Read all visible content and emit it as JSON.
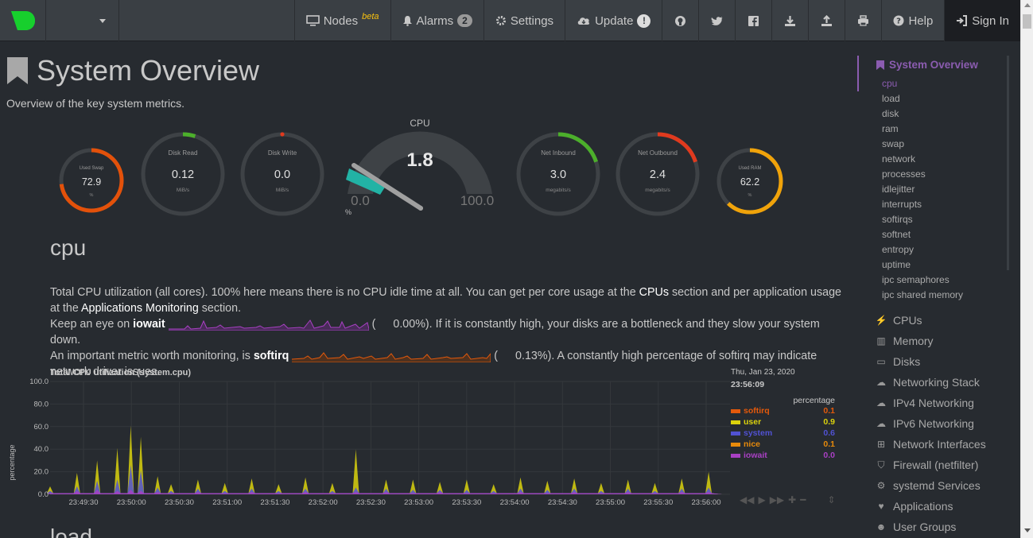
{
  "navbar": {
    "nodes_label": "Nodes",
    "nodes_beta": "beta",
    "alarms_label": "Alarms",
    "alarms_count": "2",
    "settings_label": "Settings",
    "update_label": "Update",
    "update_badge": "!",
    "help_label": "Help",
    "signin_label": "Sign In",
    "icons": [
      "github-icon",
      "twitter-icon",
      "facebook-icon",
      "download-icon",
      "upload-icon",
      "print-icon"
    ]
  },
  "page": {
    "title": "System Overview",
    "subtitle": "Overview of the key system metrics."
  },
  "gauges": {
    "used_swap": {
      "label": "Used Swap",
      "value": "72.9",
      "unit": "%",
      "fraction": 0.729,
      "color": "#e3510a"
    },
    "disk_read": {
      "label": "Disk Read",
      "value": "0.12",
      "unit": "MiB/s",
      "fraction": 0.05,
      "color": "#4caf2b"
    },
    "disk_write": {
      "label": "Disk Write",
      "value": "0.0",
      "unit": "MiB/s",
      "fraction": 0.0,
      "color": "#e03a1e"
    },
    "cpu": {
      "label": "CPU",
      "value": "1.8",
      "min": "0.0",
      "max": "100.0",
      "unit": "%",
      "fraction": 0.018,
      "color": "#22b3a5"
    },
    "net_inbound": {
      "label": "Net Inbound",
      "value": "3.0",
      "unit": "megabits/s",
      "fraction": 0.2,
      "color": "#4caf2b"
    },
    "net_outbound": {
      "label": "Net Outbound",
      "value": "2.4",
      "unit": "megabits/s",
      "fraction": 0.2,
      "color": "#e03a1e"
    },
    "used_ram": {
      "label": "Used RAM",
      "value": "62.2",
      "unit": "%",
      "fraction": 0.622,
      "color": "#f0a30a"
    }
  },
  "cpu_section": {
    "heading": "cpu",
    "p1a": "Total CPU utilization (all cores). 100% here means there is no CPU idle time at all. You can get per core usage at the ",
    "p1_link1": "CPUs",
    "p1b": " section and per application usage at the ",
    "p1_link2": "Applications Monitoring",
    "p1c": " section.",
    "p2a": "Keep an eye on ",
    "p2_bold": "iowait",
    "p2_val": "0.00%",
    "p2b": "). If it is constantly high, your disks are a bottleneck and they slow your system down.",
    "p3a": "An important metric worth monitoring, is ",
    "p3_bold": "softirq",
    "p3_val": "0.13%",
    "p3b": "). A constantly high percentage of softirq may indicate network driver issues."
  },
  "chart_data": {
    "type": "area",
    "title": "Total CPU utilization (system.cpu)",
    "ylabel": "percentage",
    "ylim": [
      0,
      100
    ],
    "yticks": [
      "100.0",
      "80.0",
      "60.0",
      "40.0",
      "20.0",
      "0.0"
    ],
    "xticks": [
      "23:49:30",
      "23:50:00",
      "23:50:30",
      "23:51:00",
      "23:51:30",
      "23:52:00",
      "23:52:30",
      "23:53:00",
      "23:53:30",
      "23:54:00",
      "23:54:30",
      "23:55:00",
      "23:55:30",
      "23:56:00"
    ],
    "legend_date": "Thu, Jan 23, 2020",
    "legend_time": "23:56:09",
    "legend_unit": "percentage",
    "series": [
      {
        "name": "softirq",
        "value": "0.1",
        "color": "#e4590b"
      },
      {
        "name": "user",
        "value": "0.9",
        "color": "#dbd20d"
      },
      {
        "name": "system",
        "value": "0.6",
        "color": "#5152d3"
      },
      {
        "name": "nice",
        "value": "0.1",
        "color": "#e78a0b"
      },
      {
        "name": "iowait",
        "value": "0.0",
        "color": "#a940c4"
      }
    ],
    "peaks": [
      {
        "t": 0.0,
        "user": 4,
        "system": 2,
        "iowait": 1
      },
      {
        "t": 0.04,
        "user": 12,
        "system": 4,
        "iowait": 3
      },
      {
        "t": 0.07,
        "user": 18,
        "system": 8,
        "iowait": 4
      },
      {
        "t": 0.1,
        "user": 28,
        "system": 10,
        "iowait": 3
      },
      {
        "t": 0.12,
        "user": 35,
        "system": 22,
        "iowait": 4
      },
      {
        "t": 0.135,
        "user": 30,
        "system": 18,
        "iowait": 3
      },
      {
        "t": 0.16,
        "user": 10,
        "system": 4,
        "iowait": 2
      },
      {
        "t": 0.18,
        "user": 6,
        "system": 2,
        "iowait": 1
      },
      {
        "t": 0.22,
        "user": 8,
        "system": 3,
        "iowait": 2
      },
      {
        "t": 0.26,
        "user": 7,
        "system": 2,
        "iowait": 1
      },
      {
        "t": 0.3,
        "user": 9,
        "system": 3,
        "iowait": 2
      },
      {
        "t": 0.34,
        "user": 6,
        "system": 2,
        "iowait": 1
      },
      {
        "t": 0.38,
        "user": 10,
        "system": 3,
        "iowait": 2
      },
      {
        "t": 0.42,
        "user": 7,
        "system": 2,
        "iowait": 1
      },
      {
        "t": 0.455,
        "user": 34,
        "system": 4,
        "iowait": 2
      },
      {
        "t": 0.5,
        "user": 8,
        "system": 3,
        "iowait": 2
      },
      {
        "t": 0.54,
        "user": 9,
        "system": 3,
        "iowait": 1
      },
      {
        "t": 0.58,
        "user": 7,
        "system": 2,
        "iowait": 2
      },
      {
        "t": 0.62,
        "user": 9,
        "system": 3,
        "iowait": 1
      },
      {
        "t": 0.66,
        "user": 6,
        "system": 2,
        "iowait": 1
      },
      {
        "t": 0.7,
        "user": 10,
        "system": 3,
        "iowait": 2
      },
      {
        "t": 0.74,
        "user": 8,
        "system": 3,
        "iowait": 1
      },
      {
        "t": 0.78,
        "user": 9,
        "system": 3,
        "iowait": 2
      },
      {
        "t": 0.82,
        "user": 7,
        "system": 2,
        "iowait": 1
      },
      {
        "t": 0.86,
        "user": 8,
        "system": 3,
        "iowait": 2
      },
      {
        "t": 0.9,
        "user": 7,
        "system": 2,
        "iowait": 1
      },
      {
        "t": 0.94,
        "user": 9,
        "system": 3,
        "iowait": 2
      },
      {
        "t": 0.98,
        "user": 14,
        "system": 4,
        "iowait": 2
      }
    ]
  },
  "load_heading": "load",
  "sidenav": {
    "title": "System Overview",
    "sub": [
      "cpu",
      "load",
      "disk",
      "ram",
      "swap",
      "network",
      "processes",
      "idlejitter",
      "interrupts",
      "softirqs",
      "softnet",
      "entropy",
      "uptime",
      "ipc semaphores",
      "ipc shared memory"
    ],
    "groups": [
      {
        "label": "CPUs",
        "icon": "bolt-icon"
      },
      {
        "label": "Memory",
        "icon": "memory-icon"
      },
      {
        "label": "Disks",
        "icon": "hdd-icon"
      },
      {
        "label": "Networking Stack",
        "icon": "cloud-icon"
      },
      {
        "label": "IPv4 Networking",
        "icon": "cloud-icon"
      },
      {
        "label": "IPv6 Networking",
        "icon": "cloud-icon"
      },
      {
        "label": "Network Interfaces",
        "icon": "sitemap-icon"
      },
      {
        "label": "Firewall (netfilter)",
        "icon": "shield-icon"
      },
      {
        "label": "systemd Services",
        "icon": "cogs-icon"
      },
      {
        "label": "Applications",
        "icon": "heartbeat-icon"
      },
      {
        "label": "User Groups",
        "icon": "users-icon"
      }
    ]
  }
}
